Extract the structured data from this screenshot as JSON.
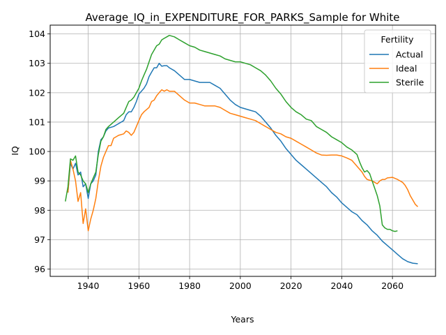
{
  "chart_data": {
    "type": "line",
    "title": "Average_IQ_in_EXPENDITURE_FOR_PARKS_Sample for White",
    "xlabel": "Years",
    "ylabel": "IQ",
    "xlim": [
      1925,
      2077
    ],
    "ylim": [
      95.75,
      104.3
    ],
    "xticks": [
      1940,
      1960,
      1980,
      2000,
      2020,
      2040,
      2060
    ],
    "yticks": [
      96,
      97,
      98,
      99,
      100,
      101,
      102,
      103,
      104
    ],
    "grid": true,
    "legend": {
      "title": "Fertility",
      "placement": "top-right"
    },
    "series": [
      {
        "name": "Actual",
        "color": "#1f77b4",
        "points": [
          [
            1932,
            98.6
          ],
          [
            1933,
            99.6
          ],
          [
            1934,
            99.4
          ],
          [
            1935,
            99.6
          ],
          [
            1936,
            99.2
          ],
          [
            1937,
            99.3
          ],
          [
            1938,
            98.8
          ],
          [
            1939,
            98.9
          ],
          [
            1940,
            98.4
          ],
          [
            1941,
            98.9
          ],
          [
            1942,
            99.0
          ],
          [
            1943,
            99.2
          ],
          [
            1944,
            100.0
          ],
          [
            1945,
            100.4
          ],
          [
            1946,
            100.5
          ],
          [
            1947,
            100.7
          ],
          [
            1948,
            100.8
          ],
          [
            1950,
            100.85
          ],
          [
            1952,
            100.95
          ],
          [
            1954,
            101.05
          ],
          [
            1955,
            101.25
          ],
          [
            1956,
            101.35
          ],
          [
            1957,
            101.35
          ],
          [
            1958,
            101.5
          ],
          [
            1959,
            101.7
          ],
          [
            1960,
            101.95
          ],
          [
            1962,
            102.15
          ],
          [
            1963,
            102.3
          ],
          [
            1964,
            102.55
          ],
          [
            1965,
            102.7
          ],
          [
            1966,
            102.85
          ],
          [
            1967,
            102.85
          ],
          [
            1968,
            103.0
          ],
          [
            1969,
            102.9
          ],
          [
            1970,
            102.92
          ],
          [
            1971,
            102.92
          ],
          [
            1972,
            102.85
          ],
          [
            1974,
            102.75
          ],
          [
            1976,
            102.6
          ],
          [
            1978,
            102.45
          ],
          [
            1980,
            102.45
          ],
          [
            1982,
            102.4
          ],
          [
            1984,
            102.35
          ],
          [
            1986,
            102.35
          ],
          [
            1988,
            102.35
          ],
          [
            1990,
            102.25
          ],
          [
            1992,
            102.15
          ],
          [
            1994,
            101.95
          ],
          [
            1996,
            101.75
          ],
          [
            1998,
            101.6
          ],
          [
            2000,
            101.5
          ],
          [
            2002,
            101.45
          ],
          [
            2004,
            101.4
          ],
          [
            2006,
            101.35
          ],
          [
            2008,
            101.2
          ],
          [
            2010,
            101.0
          ],
          [
            2012,
            100.8
          ],
          [
            2014,
            100.55
          ],
          [
            2016,
            100.35
          ],
          [
            2018,
            100.1
          ],
          [
            2020,
            99.9
          ],
          [
            2022,
            99.7
          ],
          [
            2024,
            99.55
          ],
          [
            2026,
            99.4
          ],
          [
            2028,
            99.25
          ],
          [
            2030,
            99.1
          ],
          [
            2032,
            98.95
          ],
          [
            2034,
            98.8
          ],
          [
            2036,
            98.6
          ],
          [
            2038,
            98.45
          ],
          [
            2040,
            98.25
          ],
          [
            2042,
            98.1
          ],
          [
            2044,
            97.95
          ],
          [
            2046,
            97.85
          ],
          [
            2048,
            97.65
          ],
          [
            2050,
            97.5
          ],
          [
            2052,
            97.3
          ],
          [
            2054,
            97.15
          ],
          [
            2056,
            96.95
          ],
          [
            2058,
            96.8
          ],
          [
            2060,
            96.65
          ],
          [
            2062,
            96.5
          ],
          [
            2064,
            96.35
          ],
          [
            2066,
            96.25
          ],
          [
            2068,
            96.2
          ],
          [
            2070,
            96.18
          ]
        ]
      },
      {
        "name": "Ideal",
        "color": "#ff7f0e",
        "points": [
          [
            1932,
            98.6
          ],
          [
            1933,
            99.7
          ],
          [
            1934,
            99.4
          ],
          [
            1935,
            99.0
          ],
          [
            1936,
            98.3
          ],
          [
            1937,
            98.6
          ],
          [
            1938,
            97.55
          ],
          [
            1939,
            98.05
          ],
          [
            1940,
            97.3
          ],
          [
            1941,
            97.7
          ],
          [
            1942,
            98.0
          ],
          [
            1943,
            98.4
          ],
          [
            1944,
            99.0
          ],
          [
            1945,
            99.5
          ],
          [
            1946,
            99.8
          ],
          [
            1947,
            100.0
          ],
          [
            1948,
            100.2
          ],
          [
            1949,
            100.2
          ],
          [
            1950,
            100.45
          ],
          [
            1952,
            100.55
          ],
          [
            1954,
            100.6
          ],
          [
            1955,
            100.7
          ],
          [
            1956,
            100.65
          ],
          [
            1957,
            100.55
          ],
          [
            1958,
            100.65
          ],
          [
            1959,
            100.85
          ],
          [
            1960,
            101.05
          ],
          [
            1961,
            101.25
          ],
          [
            1962,
            101.35
          ],
          [
            1964,
            101.5
          ],
          [
            1965,
            101.7
          ],
          [
            1966,
            101.75
          ],
          [
            1967,
            101.9
          ],
          [
            1968,
            102.0
          ],
          [
            1969,
            102.1
          ],
          [
            1970,
            102.05
          ],
          [
            1971,
            102.1
          ],
          [
            1972,
            102.05
          ],
          [
            1974,
            102.05
          ],
          [
            1976,
            101.9
          ],
          [
            1978,
            101.75
          ],
          [
            1980,
            101.65
          ],
          [
            1982,
            101.65
          ],
          [
            1984,
            101.6
          ],
          [
            1986,
            101.55
          ],
          [
            1988,
            101.55
          ],
          [
            1990,
            101.55
          ],
          [
            1992,
            101.5
          ],
          [
            1994,
            101.4
          ],
          [
            1996,
            101.3
          ],
          [
            1998,
            101.25
          ],
          [
            2000,
            101.2
          ],
          [
            2002,
            101.15
          ],
          [
            2004,
            101.1
          ],
          [
            2006,
            101.05
          ],
          [
            2008,
            100.95
          ],
          [
            2010,
            100.85
          ],
          [
            2012,
            100.75
          ],
          [
            2014,
            100.65
          ],
          [
            2016,
            100.6
          ],
          [
            2018,
            100.5
          ],
          [
            2020,
            100.45
          ],
          [
            2022,
            100.35
          ],
          [
            2024,
            100.25
          ],
          [
            2026,
            100.15
          ],
          [
            2028,
            100.05
          ],
          [
            2030,
            99.95
          ],
          [
            2032,
            99.88
          ],
          [
            2034,
            99.87
          ],
          [
            2036,
            99.88
          ],
          [
            2038,
            99.88
          ],
          [
            2040,
            99.85
          ],
          [
            2042,
            99.78
          ],
          [
            2044,
            99.7
          ],
          [
            2046,
            99.5
          ],
          [
            2048,
            99.3
          ],
          [
            2049,
            99.15
          ],
          [
            2050,
            99.05
          ],
          [
            2052,
            99.0
          ],
          [
            2053,
            98.95
          ],
          [
            2054,
            98.9
          ],
          [
            2055,
            99.0
          ],
          [
            2056,
            99.05
          ],
          [
            2057,
            99.05
          ],
          [
            2058,
            99.1
          ],
          [
            2060,
            99.12
          ],
          [
            2062,
            99.05
          ],
          [
            2064,
            98.95
          ],
          [
            2065,
            98.85
          ],
          [
            2066,
            98.7
          ],
          [
            2067,
            98.5
          ],
          [
            2068,
            98.35
          ],
          [
            2069,
            98.2
          ],
          [
            2070,
            98.12
          ]
        ]
      },
      {
        "name": "Sterile",
        "color": "#2ca02c",
        "points": [
          [
            1931,
            98.3
          ],
          [
            1932,
            98.8
          ],
          [
            1933,
            99.75
          ],
          [
            1934,
            99.7
          ],
          [
            1935,
            99.85
          ],
          [
            1936,
            99.3
          ],
          [
            1937,
            99.2
          ],
          [
            1938,
            99.0
          ],
          [
            1939,
            98.9
          ],
          [
            1940,
            98.6
          ],
          [
            1941,
            98.9
          ],
          [
            1942,
            99.1
          ],
          [
            1943,
            99.3
          ],
          [
            1944,
            99.9
          ],
          [
            1945,
            100.35
          ],
          [
            1946,
            100.5
          ],
          [
            1947,
            100.75
          ],
          [
            1948,
            100.85
          ],
          [
            1950,
            101.0
          ],
          [
            1952,
            101.15
          ],
          [
            1954,
            101.3
          ],
          [
            1955,
            101.5
          ],
          [
            1956,
            101.7
          ],
          [
            1957,
            101.75
          ],
          [
            1958,
            101.85
          ],
          [
            1960,
            102.15
          ],
          [
            1961,
            102.4
          ],
          [
            1962,
            102.6
          ],
          [
            1963,
            102.8
          ],
          [
            1964,
            103.05
          ],
          [
            1965,
            103.3
          ],
          [
            1966,
            103.45
          ],
          [
            1967,
            103.6
          ],
          [
            1968,
            103.65
          ],
          [
            1969,
            103.8
          ],
          [
            1970,
            103.85
          ],
          [
            1971,
            103.9
          ],
          [
            1972,
            103.95
          ],
          [
            1974,
            103.9
          ],
          [
            1976,
            103.8
          ],
          [
            1978,
            103.7
          ],
          [
            1980,
            103.6
          ],
          [
            1982,
            103.55
          ],
          [
            1984,
            103.45
          ],
          [
            1986,
            103.4
          ],
          [
            1988,
            103.35
          ],
          [
            1990,
            103.3
          ],
          [
            1992,
            103.25
          ],
          [
            1994,
            103.15
          ],
          [
            1996,
            103.1
          ],
          [
            1998,
            103.05
          ],
          [
            2000,
            103.05
          ],
          [
            2002,
            103.0
          ],
          [
            2004,
            102.95
          ],
          [
            2006,
            102.85
          ],
          [
            2008,
            102.75
          ],
          [
            2010,
            102.6
          ],
          [
            2012,
            102.4
          ],
          [
            2014,
            102.15
          ],
          [
            2016,
            101.95
          ],
          [
            2018,
            101.7
          ],
          [
            2020,
            101.5
          ],
          [
            2022,
            101.35
          ],
          [
            2024,
            101.25
          ],
          [
            2026,
            101.1
          ],
          [
            2028,
            101.05
          ],
          [
            2030,
            100.85
          ],
          [
            2032,
            100.75
          ],
          [
            2034,
            100.65
          ],
          [
            2036,
            100.5
          ],
          [
            2038,
            100.4
          ],
          [
            2040,
            100.3
          ],
          [
            2042,
            100.15
          ],
          [
            2044,
            100.05
          ],
          [
            2046,
            99.9
          ],
          [
            2047,
            99.65
          ],
          [
            2048,
            99.45
          ],
          [
            2049,
            99.3
          ],
          [
            2050,
            99.35
          ],
          [
            2051,
            99.25
          ],
          [
            2052,
            99.0
          ],
          [
            2053,
            98.75
          ],
          [
            2054,
            98.5
          ],
          [
            2055,
            98.15
          ],
          [
            2056,
            97.5
          ],
          [
            2057,
            97.4
          ],
          [
            2058,
            97.35
          ],
          [
            2059,
            97.35
          ],
          [
            2060,
            97.3
          ],
          [
            2061,
            97.28
          ],
          [
            2062,
            97.3
          ]
        ]
      }
    ]
  }
}
